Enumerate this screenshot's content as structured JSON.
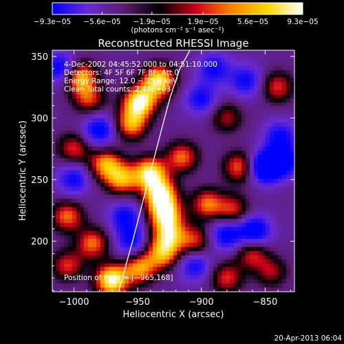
{
  "chart_data": {
    "type": "heatmap",
    "title": "Reconstructed RHESSI Image",
    "xlabel": "Heliocentric X (arcsec)",
    "ylabel": "Heliocentric Y (arcsec)",
    "xlim": [
      -1017,
      -827
    ],
    "ylim": [
      159,
      355
    ],
    "x_ticks": [
      -1000,
      -950,
      -900,
      -850
    ],
    "x_tick_labels": [
      "−1000",
      "−950",
      "−900",
      "−850"
    ],
    "y_ticks": [
      200,
      250,
      300,
      350
    ],
    "y_tick_labels": [
      "200",
      "250",
      "300",
      "350"
    ],
    "colorbar": {
      "range": [
        -9.3e-05,
        9.3e-05
      ],
      "ticks": [
        -9.3e-05,
        -5.6e-05,
        -1.9e-05,
        1.9e-05,
        5.6e-05,
        9.3e-05
      ],
      "tick_labels": [
        "−9.3e−05",
        "−5.6e−05",
        "−1.9e−05",
        "1.9e−05",
        "5.6e−05",
        "9.3e−05"
      ],
      "units_label": "(photons cm⁻² s⁻¹ asec⁻²)",
      "colors": [
        "#0000ff",
        "#6a2bd4",
        "#5a1c6e",
        "#000000",
        "#c8001a",
        "#ff8000",
        "#ffd800",
        "#ffffff"
      ]
    },
    "annotations": [
      "4-Dec-2002 04:45:52.000 to 04:51:10.000",
      "Detectors: 4F 5F 6F 7F 8F, Att 0",
      "Energy Range: 12.0 − 25.0 keV",
      "Clean    Total counts: 2.44E+03"
    ],
    "peak_label": "Position of Peak = [−965,168]",
    "limb_curve": {
      "x": [
        -965,
        -954,
        -944,
        -934,
        -925,
        -917,
        -909
      ],
      "y": [
        159,
        200,
        240,
        280,
        315,
        340,
        355
      ]
    },
    "hot_spots": [
      {
        "x": -995,
        "y": 333,
        "v": 0.8
      },
      {
        "x": -988,
        "y": 315,
        "v": 0.5
      },
      {
        "x": -948,
        "y": 313,
        "v": 1.0
      },
      {
        "x": -933,
        "y": 330,
        "v": 0.9
      },
      {
        "x": -955,
        "y": 295,
        "v": 0.7
      },
      {
        "x": -1000,
        "y": 275,
        "v": 0.5
      },
      {
        "x": -975,
        "y": 262,
        "v": 0.7
      },
      {
        "x": -962,
        "y": 250,
        "v": 0.7
      },
      {
        "x": -940,
        "y": 255,
        "v": 0.9
      },
      {
        "x": -932,
        "y": 238,
        "v": 0.9
      },
      {
        "x": -928,
        "y": 222,
        "v": 0.9
      },
      {
        "x": -925,
        "y": 205,
        "v": 0.7
      },
      {
        "x": -930,
        "y": 190,
        "v": 0.7
      },
      {
        "x": -1005,
        "y": 220,
        "v": 0.6
      },
      {
        "x": -985,
        "y": 198,
        "v": 0.6
      },
      {
        "x": -1005,
        "y": 180,
        "v": 0.5
      },
      {
        "x": -970,
        "y": 168,
        "v": 1.0
      },
      {
        "x": -948,
        "y": 178,
        "v": 0.7
      },
      {
        "x": -905,
        "y": 200,
        "v": 0.5
      },
      {
        "x": -895,
        "y": 230,
        "v": 0.6
      },
      {
        "x": -880,
        "y": 300,
        "v": 0.4
      },
      {
        "x": -870,
        "y": 260,
        "v": 0.6
      },
      {
        "x": -875,
        "y": 225,
        "v": 0.5
      },
      {
        "x": -860,
        "y": 190,
        "v": 0.5
      },
      {
        "x": -880,
        "y": 170,
        "v": 0.5
      },
      {
        "x": -840,
        "y": 325,
        "v": 0.5
      },
      {
        "x": -915,
        "y": 268,
        "v": 0.6
      },
      {
        "x": -845,
        "y": 175,
        "v": 0.4
      }
    ],
    "cold_spots": [
      {
        "x": -1010,
        "y": 340,
        "v": -0.6
      },
      {
        "x": -980,
        "y": 290,
        "v": -0.6
      },
      {
        "x": -960,
        "y": 220,
        "v": -0.5
      },
      {
        "x": -955,
        "y": 200,
        "v": -0.5
      },
      {
        "x": -900,
        "y": 315,
        "v": -0.5
      },
      {
        "x": -890,
        "y": 340,
        "v": -0.5
      },
      {
        "x": -880,
        "y": 205,
        "v": -0.6
      },
      {
        "x": -858,
        "y": 208,
        "v": -0.7
      },
      {
        "x": -850,
        "y": 260,
        "v": -0.9
      },
      {
        "x": -835,
        "y": 265,
        "v": -0.6
      },
      {
        "x": -865,
        "y": 330,
        "v": -0.5
      },
      {
        "x": -838,
        "y": 285,
        "v": -0.5
      },
      {
        "x": -905,
        "y": 180,
        "v": -0.5
      },
      {
        "x": -1000,
        "y": 250,
        "v": -0.5
      }
    ]
  },
  "footer": {
    "timestamp": "20-Apr-2013 06:04"
  }
}
